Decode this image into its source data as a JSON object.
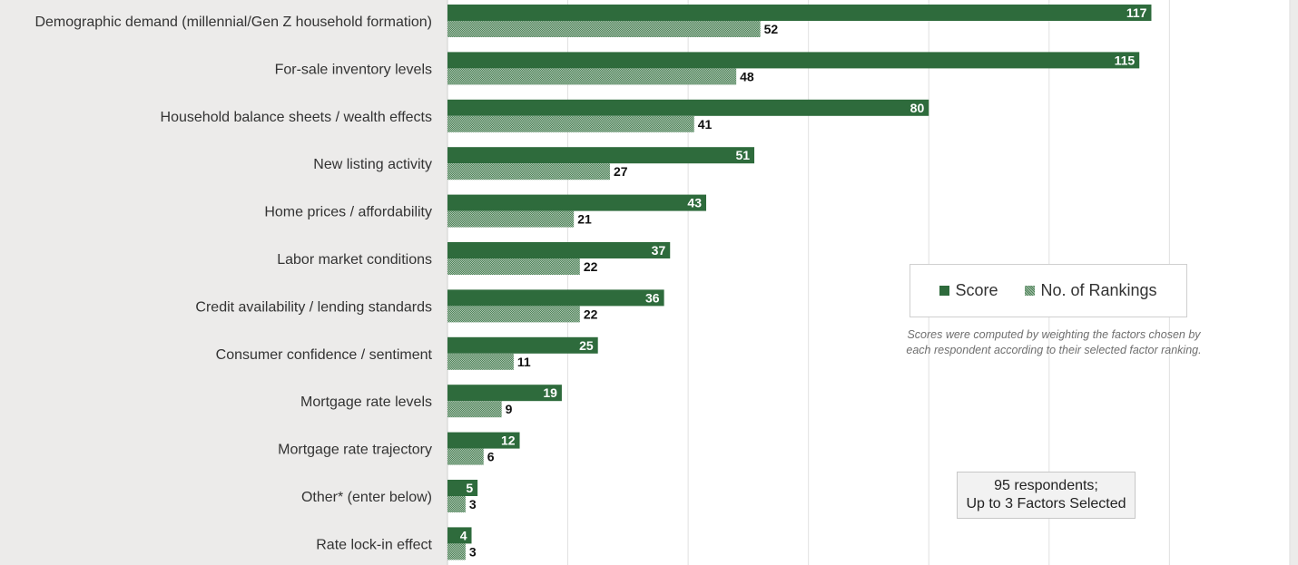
{
  "chart_data": {
    "type": "bar",
    "orientation": "horizontal",
    "categories": [
      "Demographic demand (millennial/Gen Z household formation)",
      "For-sale inventory levels",
      "Household balance sheets / wealth effects",
      "New listing activity",
      "Home prices / affordability",
      "Labor market conditions",
      "Credit availability / lending standards",
      "Consumer confidence / sentiment",
      "Mortgage rate levels",
      "Mortgage rate trajectory",
      "Other* (enter below)",
      "Rate lock-in effect"
    ],
    "series": [
      {
        "name": "Score",
        "values": [
          117,
          115,
          80,
          51,
          43,
          37,
          36,
          25,
          19,
          12,
          5,
          4
        ]
      },
      {
        "name": "No. of Rankings",
        "values": [
          52,
          48,
          41,
          27,
          21,
          22,
          22,
          11,
          9,
          6,
          3,
          3
        ]
      }
    ],
    "xlim": [
      0,
      140
    ],
    "grid": true,
    "legend_position": "center-right",
    "colors": {
      "score": "#2e6b3c",
      "rankings_hatch": "#4e8359",
      "rankings_bg": "#a9c2ad"
    }
  },
  "legend": {
    "score_label": "Score",
    "rankings_label": "No. of Rankings"
  },
  "notes": {
    "score_note_line1": "Scores were computed by weighting the factors chosen by",
    "score_note_line2": "each respondent according to their selected factor ranking.",
    "respondents_line1": "95 respondents;",
    "respondents_line2": "Up to 3 Factors Selected"
  }
}
